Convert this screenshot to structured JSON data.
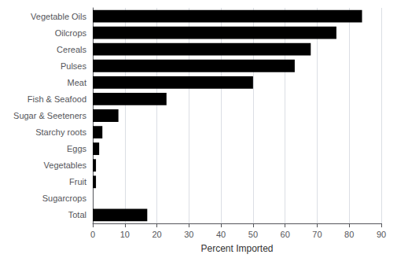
{
  "chart_data": {
    "type": "bar",
    "orientation": "horizontal",
    "categories": [
      "Vegetable Oils",
      "Oilcrops",
      "Cereals",
      "Pulses",
      "Meat",
      "Fish & Seafood",
      "Sugar & Seeteners",
      "Starchy roots",
      "Eggs",
      "Vegetables",
      "Fruit",
      "Sugarcrops",
      "Total"
    ],
    "values": [
      84,
      76,
      68,
      63,
      50,
      23,
      8,
      3,
      2,
      1,
      1,
      0,
      17
    ],
    "color": "#000000",
    "xlabel": "Percent Imported",
    "xlim": [
      0,
      90
    ],
    "xticks": [
      0,
      10,
      20,
      30,
      40,
      50,
      60,
      70,
      80,
      90
    ],
    "grid": true
  }
}
